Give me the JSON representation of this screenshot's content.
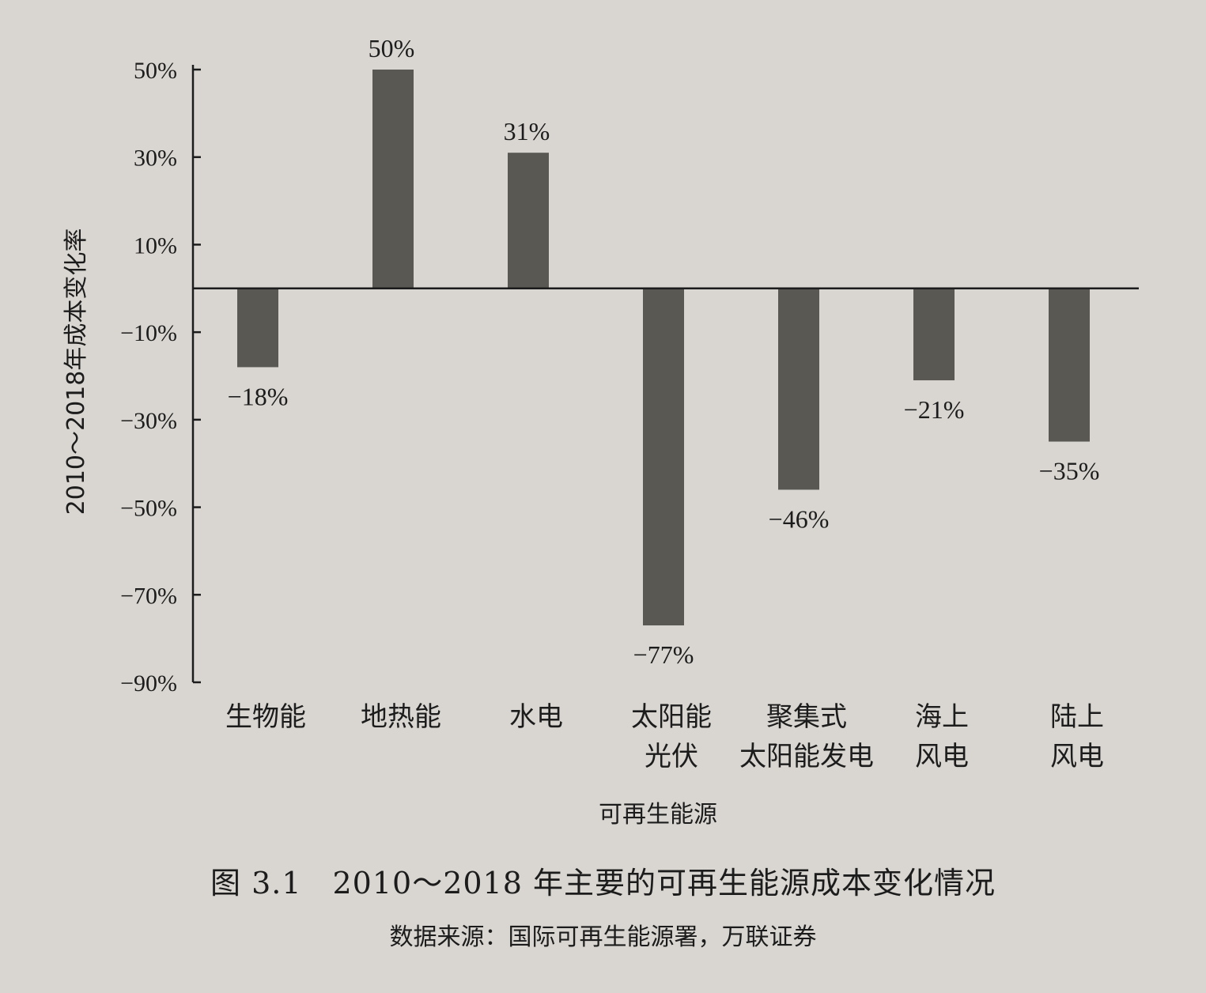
{
  "chart_data": {
    "type": "bar",
    "categories": [
      [
        "生物能"
      ],
      [
        "地热能"
      ],
      [
        "水电"
      ],
      [
        "太阳能",
        "光伏"
      ],
      [
        "聚集式",
        "太阳能发电"
      ],
      [
        "海上",
        "风电"
      ],
      [
        "陆上",
        "风电"
      ]
    ],
    "values": [
      -18,
      50,
      31,
      -77,
      -46,
      -21,
      -35
    ],
    "data_labels": [
      "−18%",
      "50%",
      "31%",
      "−77%",
      "−46%",
      "−21%",
      "−35%"
    ],
    "xlabel": "可再生能源",
    "ylabel": "2010～2018年成本变化率",
    "ylim": [
      -90,
      50
    ],
    "yticks": [
      50,
      30,
      10,
      -10,
      -30,
      -50,
      -70,
      -90
    ],
    "ytick_labels": [
      "50%",
      "30%",
      "10%",
      "−10%",
      "−30%",
      "−50%",
      "−70%",
      "−90%"
    ],
    "bar_color": "#5a5852",
    "grid": false,
    "legend": "none"
  },
  "figure": {
    "title": "图 3.1　2010～2018 年主要的可再生能源成本变化情况",
    "source": "数据来源：国际可再生能源署，万联证券"
  }
}
